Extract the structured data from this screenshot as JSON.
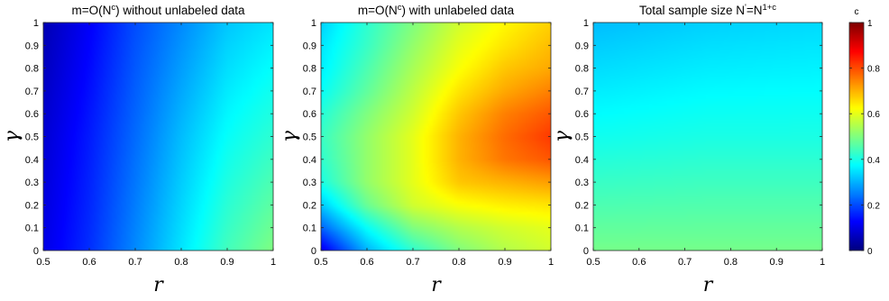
{
  "chart_data": [
    {
      "type": "heatmap",
      "title": "m=O(N^c) without unlabeled data",
      "title_parts": [
        {
          "text": "m=O(N"
        },
        {
          "text": "c",
          "sup": true
        },
        {
          "text": ") without unlabeled data"
        }
      ],
      "xlabel": "r",
      "ylabel": "γ",
      "xlim": [
        0.5,
        1
      ],
      "ylim": [
        0,
        1
      ],
      "xticks": [
        "0.5",
        "0.6",
        "0.7",
        "0.8",
        "0.9",
        "1"
      ],
      "yticks": [
        "0",
        "0.1",
        "0.2",
        "0.3",
        "0.4",
        "0.5",
        "0.6",
        "0.7",
        "0.8",
        "0.9",
        "1"
      ],
      "colormap": "jet",
      "clim": [
        0,
        1
      ],
      "x": [
        0.5,
        0.6,
        0.7,
        0.8,
        0.9,
        1.0
      ],
      "y": [
        0,
        0.5,
        1
      ],
      "z": [
        [
          0.1,
          0.17,
          0.26,
          0.35,
          0.44,
          0.5
        ],
        [
          0.08,
          0.15,
          0.23,
          0.31,
          0.38,
          0.42
        ],
        [
          0.05,
          0.12,
          0.2,
          0.26,
          0.32,
          0.35
        ]
      ]
    },
    {
      "type": "heatmap",
      "title": "m=O(N^c) with unlabeled data",
      "title_parts": [
        {
          "text": "m=O(N"
        },
        {
          "text": "c",
          "sup": true
        },
        {
          "text": ") with unlabeled data"
        }
      ],
      "xlabel": "r",
      "ylabel": "γ",
      "xlim": [
        0.5,
        1
      ],
      "ylim": [
        0,
        1
      ],
      "xticks": [
        "0.5",
        "0.6",
        "0.7",
        "0.8",
        "0.9",
        "1"
      ],
      "yticks": [
        "0",
        "0.1",
        "0.2",
        "0.3",
        "0.4",
        "0.5",
        "0.6",
        "0.7",
        "0.8",
        "0.9",
        "1"
      ],
      "colormap": "jet",
      "clim": [
        0,
        1
      ],
      "x": [
        0.5,
        0.6,
        0.7,
        0.8,
        0.9,
        1.0
      ],
      "y": [
        0,
        0.1,
        0.2,
        0.3,
        0.4,
        0.5,
        0.6,
        0.7,
        0.8,
        0.9,
        1.0
      ],
      "z": [
        [
          0.1,
          0.3,
          0.42,
          0.5,
          0.55,
          0.58
        ],
        [
          0.22,
          0.38,
          0.5,
          0.55,
          0.58,
          0.6
        ],
        [
          0.32,
          0.48,
          0.58,
          0.62,
          0.64,
          0.65
        ],
        [
          0.4,
          0.52,
          0.6,
          0.68,
          0.7,
          0.72
        ],
        [
          0.42,
          0.52,
          0.6,
          0.7,
          0.76,
          0.79
        ],
        [
          0.43,
          0.52,
          0.6,
          0.7,
          0.77,
          0.82
        ],
        [
          0.41,
          0.5,
          0.58,
          0.68,
          0.75,
          0.79
        ],
        [
          0.38,
          0.47,
          0.56,
          0.65,
          0.71,
          0.75
        ],
        [
          0.36,
          0.45,
          0.54,
          0.62,
          0.68,
          0.71
        ],
        [
          0.35,
          0.43,
          0.52,
          0.6,
          0.65,
          0.69
        ],
        [
          0.33,
          0.42,
          0.5,
          0.58,
          0.63,
          0.67
        ]
      ]
    },
    {
      "type": "heatmap",
      "title": "Total sample size N'=N^(1+c)",
      "title_parts": [
        {
          "text": "Total sample size N"
        },
        {
          "text": "'",
          "sup": true
        },
        {
          "text": "=N"
        },
        {
          "text": "1+c",
          "sup": true
        }
      ],
      "xlabel": "r",
      "ylabel": "γ",
      "xlim": [
        0.5,
        1
      ],
      "ylim": [
        0,
        1
      ],
      "xticks": [
        "0.5",
        "0.6",
        "0.7",
        "0.8",
        "0.9",
        "1"
      ],
      "yticks": [
        "0",
        "0.1",
        "0.2",
        "0.3",
        "0.4",
        "0.5",
        "0.6",
        "0.7",
        "0.8",
        "0.9",
        "1"
      ],
      "colormap": "jet",
      "clim": [
        0,
        1
      ],
      "x": [
        0.5,
        0.75,
        1.0
      ],
      "y": [
        0,
        0.5,
        1
      ],
      "z": [
        [
          0.49,
          0.49,
          0.49
        ],
        [
          0.39,
          0.4,
          0.4
        ],
        [
          0.31,
          0.33,
          0.34
        ]
      ]
    }
  ],
  "colorbar": {
    "label": "c",
    "range": [
      0,
      1
    ],
    "ticks": [
      "0",
      "0.2",
      "0.4",
      "0.6",
      "0.8",
      "1"
    ]
  }
}
